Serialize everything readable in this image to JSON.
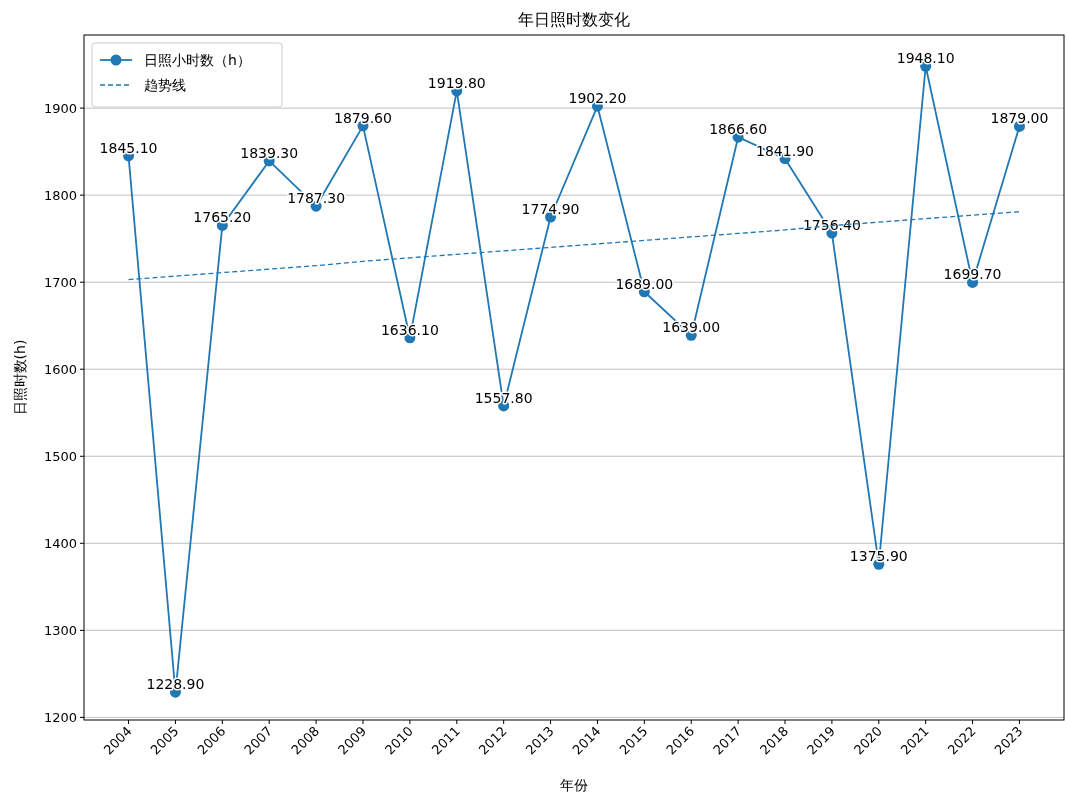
{
  "chart_data": {
    "type": "line",
    "title": "年日照时数变化",
    "xlabel": "年份",
    "ylabel": "日照时数(h)",
    "categories": [
      "2004",
      "2005",
      "2006",
      "2007",
      "2008",
      "2009",
      "2010",
      "2011",
      "2012",
      "2013",
      "2014",
      "2015",
      "2016",
      "2017",
      "2018",
      "2019",
      "2020",
      "2021",
      "2022",
      "2023"
    ],
    "series": [
      {
        "name": "日照小时数（h）",
        "color": "#1f77b4",
        "marker": "circle",
        "line_style": "solid",
        "values": [
          1845.1,
          1228.9,
          1765.2,
          1839.3,
          1787.3,
          1879.6,
          1636.1,
          1919.8,
          1557.8,
          1774.9,
          1902.2,
          1689.0,
          1639.0,
          1866.6,
          1841.9,
          1756.4,
          1375.9,
          1948.1,
          1699.7,
          1879.0
        ],
        "value_labels": [
          "1845.10",
          "1228.90",
          "1765.20",
          "1839.30",
          "1787.30",
          "1879.60",
          "1636.10",
          "1919.80",
          "1557.80",
          "1774.90",
          "1902.20",
          "1689.00",
          "1639.00",
          "1866.60",
          "1841.90",
          "1756.40",
          "1375.90",
          "1948.10",
          "1699.70",
          "1879.00"
        ]
      },
      {
        "name": "趋势线",
        "color": "#1f77b4",
        "type": "line",
        "marker": "none",
        "line_style": "dashed",
        "values": [
          1703,
          1707,
          1711,
          1715,
          1719,
          1724,
          1728,
          1732,
          1736,
          1740,
          1744,
          1748,
          1752,
          1756,
          1760,
          1765,
          1769,
          1773,
          1777,
          1781
        ]
      }
    ],
    "ylim": [
      1197,
      1984
    ],
    "yticks": [
      1200,
      1300,
      1400,
      1500,
      1600,
      1700,
      1800,
      1900
    ],
    "grid": "y",
    "legend": "top left"
  }
}
